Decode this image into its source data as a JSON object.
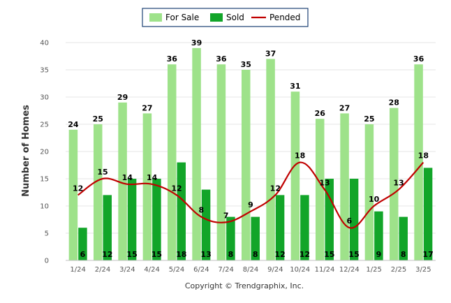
{
  "chart_data": {
    "type": "bar",
    "categories": [
      "1/24",
      "2/24",
      "3/24",
      "4/24",
      "5/24",
      "6/24",
      "7/24",
      "8/24",
      "9/24",
      "10/24",
      "11/24",
      "12/24",
      "1/25",
      "2/25",
      "3/25"
    ],
    "series": [
      {
        "name": "For Sale",
        "type": "bar",
        "color": "#9ee28a",
        "values": [
          24,
          25,
          29,
          27,
          36,
          39,
          36,
          35,
          37,
          31,
          26,
          27,
          25,
          28,
          36
        ]
      },
      {
        "name": "Sold",
        "type": "bar",
        "color": "#12a529",
        "values": [
          6,
          12,
          15,
          15,
          18,
          13,
          8,
          8,
          12,
          12,
          15,
          15,
          9,
          8,
          17
        ]
      },
      {
        "name": "Pended",
        "type": "line",
        "color": "#c00000",
        "values": [
          12,
          15,
          14,
          14,
          12,
          8,
          7,
          9,
          12,
          18,
          13,
          6,
          10,
          13,
          18
        ]
      }
    ],
    "ylabel": "Number of Homes",
    "ylim": [
      0,
      40
    ],
    "yticks": [
      0,
      5,
      10,
      15,
      20,
      25,
      30,
      35,
      40
    ],
    "grid": true,
    "legend": "top-center",
    "credit": "Copyright © Trendgraphix, Inc."
  }
}
